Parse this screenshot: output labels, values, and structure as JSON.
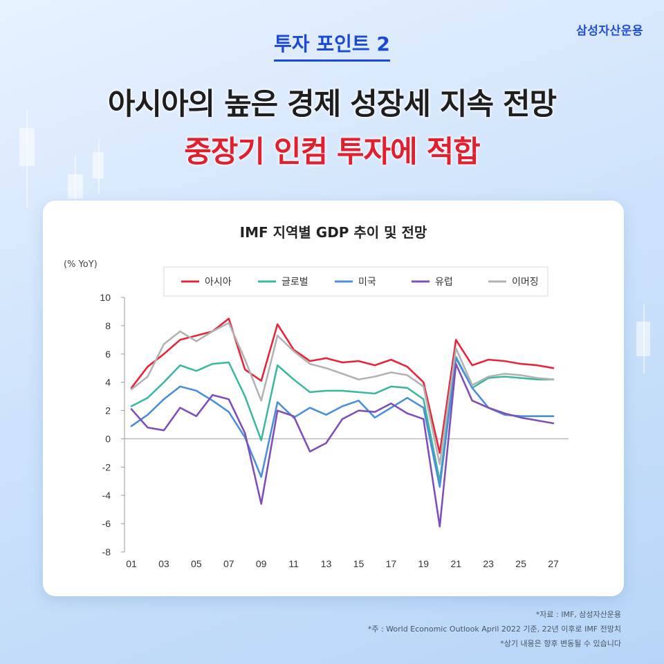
{
  "brand": "삼성자산운용",
  "point_title": "투자 포인트 2",
  "headline_line1": "아시아의 높은 경제 성장세 지속 전망",
  "headline_line2": "중장기 인컴 투자에 적합",
  "chart_data": {
    "type": "line",
    "title": "IMF 지역별 GDP 추이 및 전망",
    "unit_label": "(% YoY)",
    "ylim": [
      -8,
      10
    ],
    "yticks": [
      10,
      8,
      6,
      4,
      2,
      0,
      -2,
      -4,
      -6,
      -8
    ],
    "grid": false,
    "legend_position": "top",
    "x": [
      "01",
      "02",
      "03",
      "04",
      "05",
      "06",
      "07",
      "08",
      "09",
      "10",
      "11",
      "12",
      "13",
      "14",
      "15",
      "16",
      "17",
      "18",
      "19",
      "20",
      "21",
      "22",
      "23",
      "24",
      "25",
      "26",
      "27"
    ],
    "xticks": [
      "01",
      "03",
      "05",
      "07",
      "09",
      "11",
      "13",
      "15",
      "17",
      "19",
      "21",
      "23",
      "25",
      "27"
    ],
    "series": [
      {
        "name": "아시아",
        "color": "#e8243a",
        "values": [
          3.6,
          5.1,
          6.0,
          7.0,
          7.3,
          7.6,
          8.5,
          4.9,
          4.1,
          8.1,
          6.3,
          5.5,
          5.7,
          5.4,
          5.5,
          5.2,
          5.6,
          5.1,
          4.0,
          -1.0,
          7.0,
          5.2,
          5.6,
          5.5,
          5.3,
          5.2,
          5.0
        ]
      },
      {
        "name": "글로벌",
        "color": "#3db8a0",
        "values": [
          2.3,
          2.9,
          4.0,
          5.2,
          4.8,
          5.3,
          5.4,
          3.0,
          -0.1,
          5.2,
          4.2,
          3.3,
          3.4,
          3.4,
          3.3,
          3.2,
          3.7,
          3.6,
          2.8,
          -3.0,
          5.8,
          3.6,
          4.3,
          4.4,
          4.3,
          4.2,
          4.2
        ]
      },
      {
        "name": "미국",
        "color": "#4b8fd8",
        "values": [
          0.9,
          1.7,
          2.8,
          3.7,
          3.4,
          2.7,
          1.9,
          0.1,
          -2.7,
          2.6,
          1.5,
          2.2,
          1.7,
          2.3,
          2.7,
          1.5,
          2.2,
          2.9,
          2.2,
          -3.4,
          5.7,
          3.6,
          2.2,
          1.7,
          1.6,
          1.6,
          1.6
        ]
      },
      {
        "name": "유럽",
        "color": "#7f4fb8",
        "values": [
          2.1,
          0.8,
          0.6,
          2.2,
          1.6,
          3.1,
          2.8,
          0.4,
          -4.6,
          2.0,
          1.6,
          -0.9,
          -0.3,
          1.4,
          2.0,
          1.9,
          2.5,
          1.8,
          1.4,
          -6.2,
          5.3,
          2.7,
          2.2,
          1.8,
          1.5,
          1.3,
          1.1
        ]
      },
      {
        "name": "이머징",
        "color": "#b2b2b2",
        "values": [
          3.5,
          4.4,
          6.7,
          7.6,
          6.9,
          7.6,
          8.2,
          5.6,
          2.7,
          7.3,
          6.2,
          5.3,
          5.0,
          4.6,
          4.2,
          4.4,
          4.7,
          4.5,
          3.7,
          -1.8,
          6.4,
          3.8,
          4.4,
          4.6,
          4.5,
          4.3,
          4.2
        ]
      }
    ]
  },
  "footnotes": [
    "*자료 : IMF, 삼성자산운용",
    "*주 : World Economic Outlook April 2022 기준, 22년 이후로 IMF 전망치",
    "*상기 내용은 향후 변동될 수 있습니다"
  ]
}
